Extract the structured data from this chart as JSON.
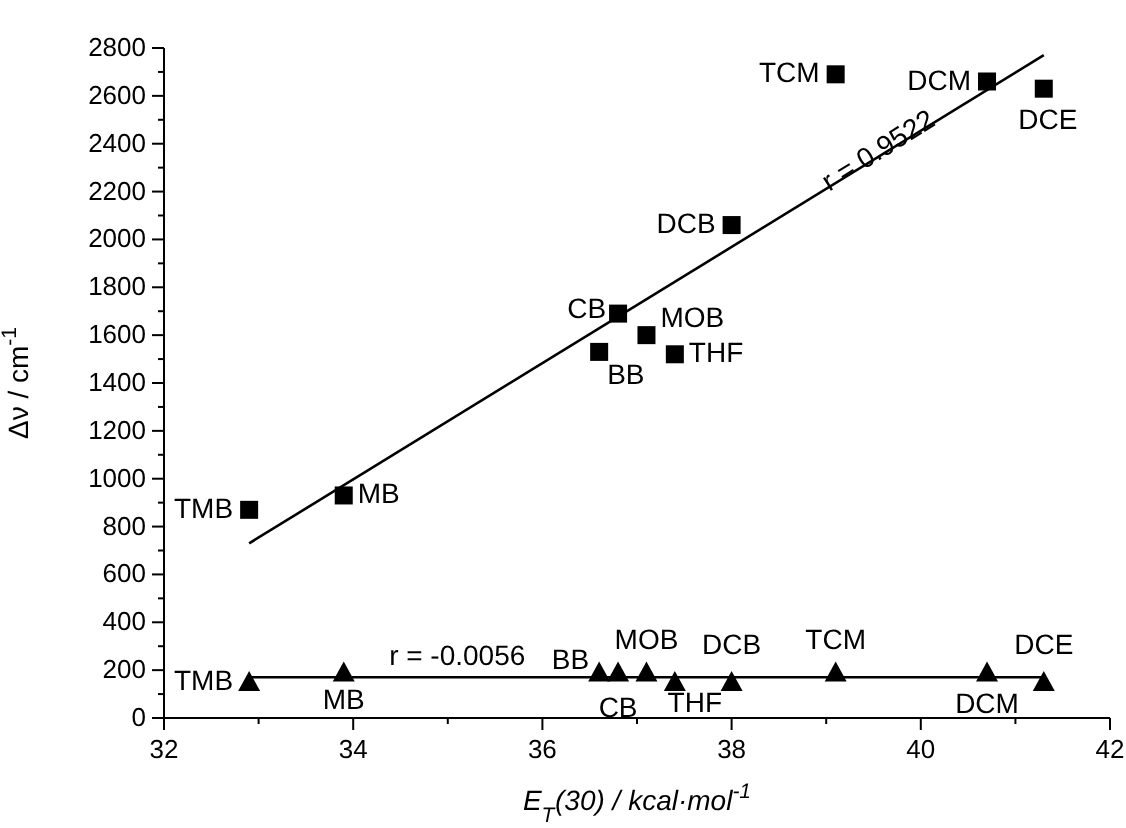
{
  "chart_data": {
    "type": "scatter",
    "xlabel": "E$_{T}$(30) / kcal·mol$^{-1}$",
    "ylabel": "Δν / cm$^{-1}$",
    "xlim": [
      32,
      42
    ],
    "xticks": [
      32,
      {
        "value": 33,
        "label": null
      },
      34,
      {
        "value": 35,
        "label": null
      },
      36,
      {
        "value": 37,
        "label": null
      },
      38,
      {
        "value": 39,
        "label": null
      },
      40,
      {
        "value": 41,
        "label": null
      },
      42
    ],
    "ylim": [
      0,
      2800
    ],
    "yticks": [
      0,
      {
        "value": 100,
        "label": null
      },
      200,
      {
        "value": 300,
        "label": null
      },
      400,
      {
        "value": 500,
        "label": null
      },
      600,
      {
        "value": 700,
        "label": null
      },
      800,
      {
        "value": 900,
        "label": null
      },
      1000,
      {
        "value": 1100,
        "label": null
      },
      1200,
      {
        "value": 1300,
        "label": null
      },
      1400,
      {
        "value": 1500,
        "label": null
      },
      1600,
      {
        "value": 1700,
        "label": null
      },
      1800,
      {
        "value": 1900,
        "label": null
      },
      2000,
      {
        "value": 2100,
        "label": null
      },
      2200,
      {
        "value": 2300,
        "label": null
      },
      2400,
      {
        "value": 2500,
        "label": null
      },
      2600,
      {
        "value": 2700,
        "label": null
      },
      2800
    ],
    "grid": false,
    "legend": false,
    "series": [
      {
        "type": "scatter",
        "marker": "square",
        "color": "#000000",
        "x": [
          32.9,
          33.9,
          36.6,
          36.8,
          37.1,
          37.4,
          38.0,
          39.1,
          40.7,
          41.3
        ],
        "values": [
          870,
          930,
          1530,
          1690,
          1600,
          1520,
          2060,
          2690,
          2660,
          2630
        ]
      },
      {
        "type": "line",
        "marker": "none",
        "line_style": "solid",
        "color": "#000000",
        "x": [
          32.9,
          41.3
        ],
        "values": [
          730,
          2770
        ]
      },
      {
        "type": "scatter",
        "marker": "triangle",
        "color": "#000000",
        "x": [
          32.9,
          33.9,
          36.6,
          36.8,
          37.1,
          37.4,
          38.0,
          39.1,
          40.7,
          41.3
        ],
        "values": [
          150,
          190,
          190,
          190,
          190,
          150,
          150,
          190,
          190,
          150
        ]
      },
      {
        "type": "line",
        "marker": "none",
        "line_style": "solid",
        "color": "#000000",
        "x": [
          32.9,
          41.3
        ],
        "values": [
          170,
          170
        ]
      }
    ],
    "annotations": [
      {
        "text": "TMB",
        "x": 32.9,
        "y": 870
      },
      {
        "text": "MB",
        "x": 33.9,
        "y": 930
      },
      {
        "text": "BB",
        "x": 36.6,
        "y": 1530
      },
      {
        "text": "CB",
        "x": 36.8,
        "y": 1690
      },
      {
        "text": "MOB",
        "x": 37.1,
        "y": 1600
      },
      {
        "text": "THF",
        "x": 37.4,
        "y": 1520
      },
      {
        "text": "DCB",
        "x": 38.0,
        "y": 2060
      },
      {
        "text": "TCM",
        "x": 39.1,
        "y": 2690
      },
      {
        "text": "DCM",
        "x": 40.7,
        "y": 2660
      },
      {
        "text": "DCE",
        "x": 41.3,
        "y": 2630
      },
      {
        "text": "r = 0.9522",
        "x": 39.6,
        "y": 2340
      },
      {
        "text": "TMB",
        "x": 32.9,
        "y": 150
      },
      {
        "text": "MB",
        "x": 33.9,
        "y": 190
      },
      {
        "text": "BB",
        "x": 36.6,
        "y": 190
      },
      {
        "text": "CB",
        "x": 36.8,
        "y": 190
      },
      {
        "text": "MOB",
        "x": 37.1,
        "y": 190
      },
      {
        "text": "THF",
        "x": 37.4,
        "y": 150
      },
      {
        "text": "DCB",
        "x": 38.0,
        "y": 150
      },
      {
        "text": "TCM",
        "x": 39.1,
        "y": 190
      },
      {
        "text": "DCM",
        "x": 40.7,
        "y": 190
      },
      {
        "text": "DCE",
        "x": 41.3,
        "y": 150
      },
      {
        "text": "r = -0.0056",
        "x": 35.1,
        "y": 170
      }
    ]
  }
}
